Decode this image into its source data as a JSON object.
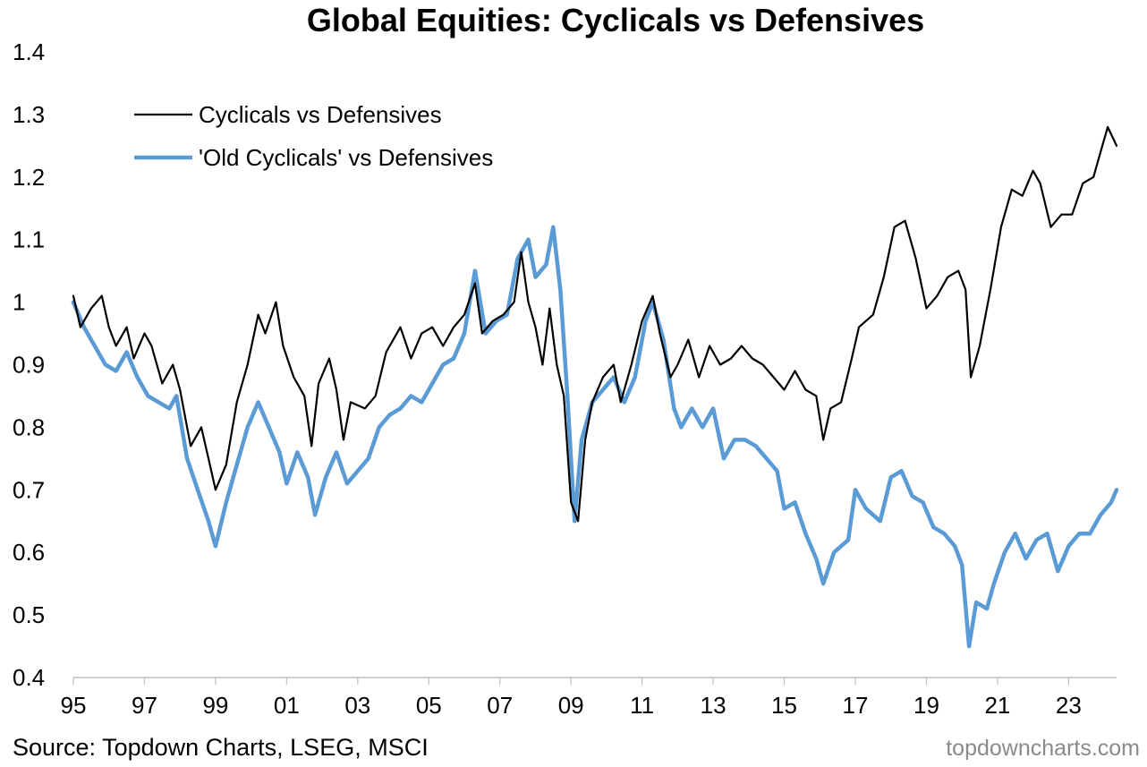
{
  "chart_data": {
    "type": "line",
    "title": "Global Equities: Cyclicals vs Defensives",
    "xlabel": "",
    "ylabel": "",
    "ylim": [
      0.4,
      1.4
    ],
    "xlim": [
      1995,
      2024.35
    ],
    "y_ticks": [
      "1.4",
      "1.3",
      "1.2",
      "1.1",
      "1",
      "0.9",
      "0.8",
      "0.7",
      "0.6",
      "0.5",
      "0.4"
    ],
    "x_ticks": [
      {
        "year": 1995,
        "label": "95"
      },
      {
        "year": 1997,
        "label": "97"
      },
      {
        "year": 1999,
        "label": "99"
      },
      {
        "year": 2001,
        "label": "01"
      },
      {
        "year": 2003,
        "label": "03"
      },
      {
        "year": 2005,
        "label": "05"
      },
      {
        "year": 2007,
        "label": "07"
      },
      {
        "year": 2009,
        "label": "09"
      },
      {
        "year": 2011,
        "label": "11"
      },
      {
        "year": 2013,
        "label": "13"
      },
      {
        "year": 2015,
        "label": "15"
      },
      {
        "year": 2017,
        "label": "17"
      },
      {
        "year": 2019,
        "label": "19"
      },
      {
        "year": 2021,
        "label": "21"
      },
      {
        "year": 2023,
        "label": "23"
      }
    ],
    "grid": false,
    "legend_position": "top-left",
    "series": [
      {
        "name": "Cyclicals vs Defensives",
        "color": "#000000",
        "points": [
          [
            1995.0,
            1.01
          ],
          [
            1995.2,
            0.96
          ],
          [
            1995.5,
            0.99
          ],
          [
            1995.8,
            1.01
          ],
          [
            1996.0,
            0.96
          ],
          [
            1996.2,
            0.93
          ],
          [
            1996.5,
            0.96
          ],
          [
            1996.7,
            0.91
          ],
          [
            1997.0,
            0.95
          ],
          [
            1997.2,
            0.93
          ],
          [
            1997.5,
            0.87
          ],
          [
            1997.8,
            0.9
          ],
          [
            1998.0,
            0.86
          ],
          [
            1998.3,
            0.77
          ],
          [
            1998.6,
            0.8
          ],
          [
            1998.8,
            0.75
          ],
          [
            1999.0,
            0.7
          ],
          [
            1999.3,
            0.74
          ],
          [
            1999.6,
            0.84
          ],
          [
            1999.9,
            0.9
          ],
          [
            2000.2,
            0.98
          ],
          [
            2000.4,
            0.95
          ],
          [
            2000.7,
            1.0
          ],
          [
            2000.9,
            0.93
          ],
          [
            2001.2,
            0.88
          ],
          [
            2001.5,
            0.85
          ],
          [
            2001.7,
            0.77
          ],
          [
            2001.9,
            0.87
          ],
          [
            2002.2,
            0.91
          ],
          [
            2002.4,
            0.86
          ],
          [
            2002.6,
            0.78
          ],
          [
            2002.8,
            0.84
          ],
          [
            2003.2,
            0.83
          ],
          [
            2003.5,
            0.85
          ],
          [
            2003.8,
            0.92
          ],
          [
            2004.2,
            0.96
          ],
          [
            2004.5,
            0.91
          ],
          [
            2004.8,
            0.95
          ],
          [
            2005.1,
            0.96
          ],
          [
            2005.4,
            0.93
          ],
          [
            2005.7,
            0.96
          ],
          [
            2006.0,
            0.98
          ],
          [
            2006.3,
            1.03
          ],
          [
            2006.5,
            0.95
          ],
          [
            2006.8,
            0.97
          ],
          [
            2007.1,
            0.98
          ],
          [
            2007.4,
            1.0
          ],
          [
            2007.6,
            1.08
          ],
          [
            2007.8,
            1.0
          ],
          [
            2008.0,
            0.96
          ],
          [
            2008.2,
            0.9
          ],
          [
            2008.4,
            0.99
          ],
          [
            2008.6,
            0.9
          ],
          [
            2008.8,
            0.85
          ],
          [
            2009.0,
            0.68
          ],
          [
            2009.2,
            0.65
          ],
          [
            2009.4,
            0.78
          ],
          [
            2009.6,
            0.84
          ],
          [
            2009.9,
            0.88
          ],
          [
            2010.2,
            0.9
          ],
          [
            2010.4,
            0.84
          ],
          [
            2010.7,
            0.9
          ],
          [
            2011.0,
            0.97
          ],
          [
            2011.3,
            1.01
          ],
          [
            2011.5,
            0.95
          ],
          [
            2011.8,
            0.88
          ],
          [
            2012.0,
            0.9
          ],
          [
            2012.3,
            0.94
          ],
          [
            2012.6,
            0.88
          ],
          [
            2012.9,
            0.93
          ],
          [
            2013.2,
            0.9
          ],
          [
            2013.5,
            0.91
          ],
          [
            2013.8,
            0.93
          ],
          [
            2014.1,
            0.91
          ],
          [
            2014.4,
            0.9
          ],
          [
            2014.7,
            0.88
          ],
          [
            2015.0,
            0.86
          ],
          [
            2015.3,
            0.89
          ],
          [
            2015.6,
            0.86
          ],
          [
            2015.9,
            0.85
          ],
          [
            2016.1,
            0.78
          ],
          [
            2016.3,
            0.83
          ],
          [
            2016.6,
            0.84
          ],
          [
            2016.9,
            0.91
          ],
          [
            2017.1,
            0.96
          ],
          [
            2017.5,
            0.98
          ],
          [
            2017.8,
            1.04
          ],
          [
            2018.1,
            1.12
          ],
          [
            2018.4,
            1.13
          ],
          [
            2018.7,
            1.07
          ],
          [
            2019.0,
            0.99
          ],
          [
            2019.3,
            1.01
          ],
          [
            2019.6,
            1.04
          ],
          [
            2019.9,
            1.05
          ],
          [
            2020.1,
            1.02
          ],
          [
            2020.25,
            0.88
          ],
          [
            2020.5,
            0.93
          ],
          [
            2020.8,
            1.02
          ],
          [
            2021.1,
            1.12
          ],
          [
            2021.4,
            1.18
          ],
          [
            2021.7,
            1.17
          ],
          [
            2022.0,
            1.21
          ],
          [
            2022.2,
            1.19
          ],
          [
            2022.5,
            1.12
          ],
          [
            2022.8,
            1.14
          ],
          [
            2023.1,
            1.14
          ],
          [
            2023.4,
            1.19
          ],
          [
            2023.7,
            1.2
          ],
          [
            2023.9,
            1.24
          ],
          [
            2024.1,
            1.28
          ],
          [
            2024.35,
            1.25
          ]
        ]
      },
      {
        "name": "'Old Cyclicals' vs Defensives",
        "color": "#5b9bd5",
        "points": [
          [
            1995.0,
            1.0
          ],
          [
            1995.3,
            0.96
          ],
          [
            1995.6,
            0.93
          ],
          [
            1995.9,
            0.9
          ],
          [
            1996.2,
            0.89
          ],
          [
            1996.5,
            0.92
          ],
          [
            1996.8,
            0.88
          ],
          [
            1997.1,
            0.85
          ],
          [
            1997.4,
            0.84
          ],
          [
            1997.7,
            0.83
          ],
          [
            1997.9,
            0.85
          ],
          [
            1998.2,
            0.75
          ],
          [
            1998.5,
            0.7
          ],
          [
            1998.8,
            0.65
          ],
          [
            1999.0,
            0.61
          ],
          [
            1999.3,
            0.68
          ],
          [
            1999.6,
            0.74
          ],
          [
            1999.9,
            0.8
          ],
          [
            2000.2,
            0.84
          ],
          [
            2000.5,
            0.8
          ],
          [
            2000.8,
            0.76
          ],
          [
            2001.0,
            0.71
          ],
          [
            2001.3,
            0.76
          ],
          [
            2001.6,
            0.72
          ],
          [
            2001.8,
            0.66
          ],
          [
            2002.1,
            0.72
          ],
          [
            2002.4,
            0.76
          ],
          [
            2002.7,
            0.71
          ],
          [
            2003.0,
            0.73
          ],
          [
            2003.3,
            0.75
          ],
          [
            2003.6,
            0.8
          ],
          [
            2003.9,
            0.82
          ],
          [
            2004.2,
            0.83
          ],
          [
            2004.5,
            0.85
          ],
          [
            2004.8,
            0.84
          ],
          [
            2005.1,
            0.87
          ],
          [
            2005.4,
            0.9
          ],
          [
            2005.7,
            0.91
          ],
          [
            2006.0,
            0.95
          ],
          [
            2006.3,
            1.05
          ],
          [
            2006.6,
            0.95
          ],
          [
            2006.9,
            0.97
          ],
          [
            2007.2,
            0.98
          ],
          [
            2007.5,
            1.07
          ],
          [
            2007.8,
            1.1
          ],
          [
            2008.0,
            1.04
          ],
          [
            2008.3,
            1.06
          ],
          [
            2008.5,
            1.12
          ],
          [
            2008.7,
            1.02
          ],
          [
            2008.9,
            0.85
          ],
          [
            2009.1,
            0.65
          ],
          [
            2009.3,
            0.78
          ],
          [
            2009.6,
            0.84
          ],
          [
            2009.9,
            0.86
          ],
          [
            2010.2,
            0.88
          ],
          [
            2010.5,
            0.84
          ],
          [
            2010.8,
            0.88
          ],
          [
            2011.1,
            0.97
          ],
          [
            2011.3,
            1.0
          ],
          [
            2011.6,
            0.94
          ],
          [
            2011.9,
            0.83
          ],
          [
            2012.1,
            0.8
          ],
          [
            2012.4,
            0.83
          ],
          [
            2012.7,
            0.8
          ],
          [
            2013.0,
            0.83
          ],
          [
            2013.3,
            0.75
          ],
          [
            2013.6,
            0.78
          ],
          [
            2013.9,
            0.78
          ],
          [
            2014.2,
            0.77
          ],
          [
            2014.5,
            0.75
          ],
          [
            2014.8,
            0.73
          ],
          [
            2015.0,
            0.67
          ],
          [
            2015.3,
            0.68
          ],
          [
            2015.6,
            0.63
          ],
          [
            2015.9,
            0.59
          ],
          [
            2016.1,
            0.55
          ],
          [
            2016.4,
            0.6
          ],
          [
            2016.8,
            0.62
          ],
          [
            2017.0,
            0.7
          ],
          [
            2017.3,
            0.67
          ],
          [
            2017.7,
            0.65
          ],
          [
            2018.0,
            0.72
          ],
          [
            2018.3,
            0.73
          ],
          [
            2018.6,
            0.69
          ],
          [
            2018.9,
            0.68
          ],
          [
            2019.2,
            0.64
          ],
          [
            2019.5,
            0.63
          ],
          [
            2019.8,
            0.61
          ],
          [
            2020.0,
            0.58
          ],
          [
            2020.2,
            0.45
          ],
          [
            2020.4,
            0.52
          ],
          [
            2020.7,
            0.51
          ],
          [
            2020.9,
            0.55
          ],
          [
            2021.2,
            0.6
          ],
          [
            2021.5,
            0.63
          ],
          [
            2021.8,
            0.59
          ],
          [
            2022.1,
            0.62
          ],
          [
            2022.4,
            0.63
          ],
          [
            2022.7,
            0.57
          ],
          [
            2023.0,
            0.61
          ],
          [
            2023.3,
            0.63
          ],
          [
            2023.6,
            0.63
          ],
          [
            2023.9,
            0.66
          ],
          [
            2024.2,
            0.68
          ],
          [
            2024.35,
            0.7
          ]
        ]
      }
    ]
  },
  "source_text": "Source: Topdown Charts, LSEG, MSCI",
  "watermark_text": "topdowncharts.com"
}
